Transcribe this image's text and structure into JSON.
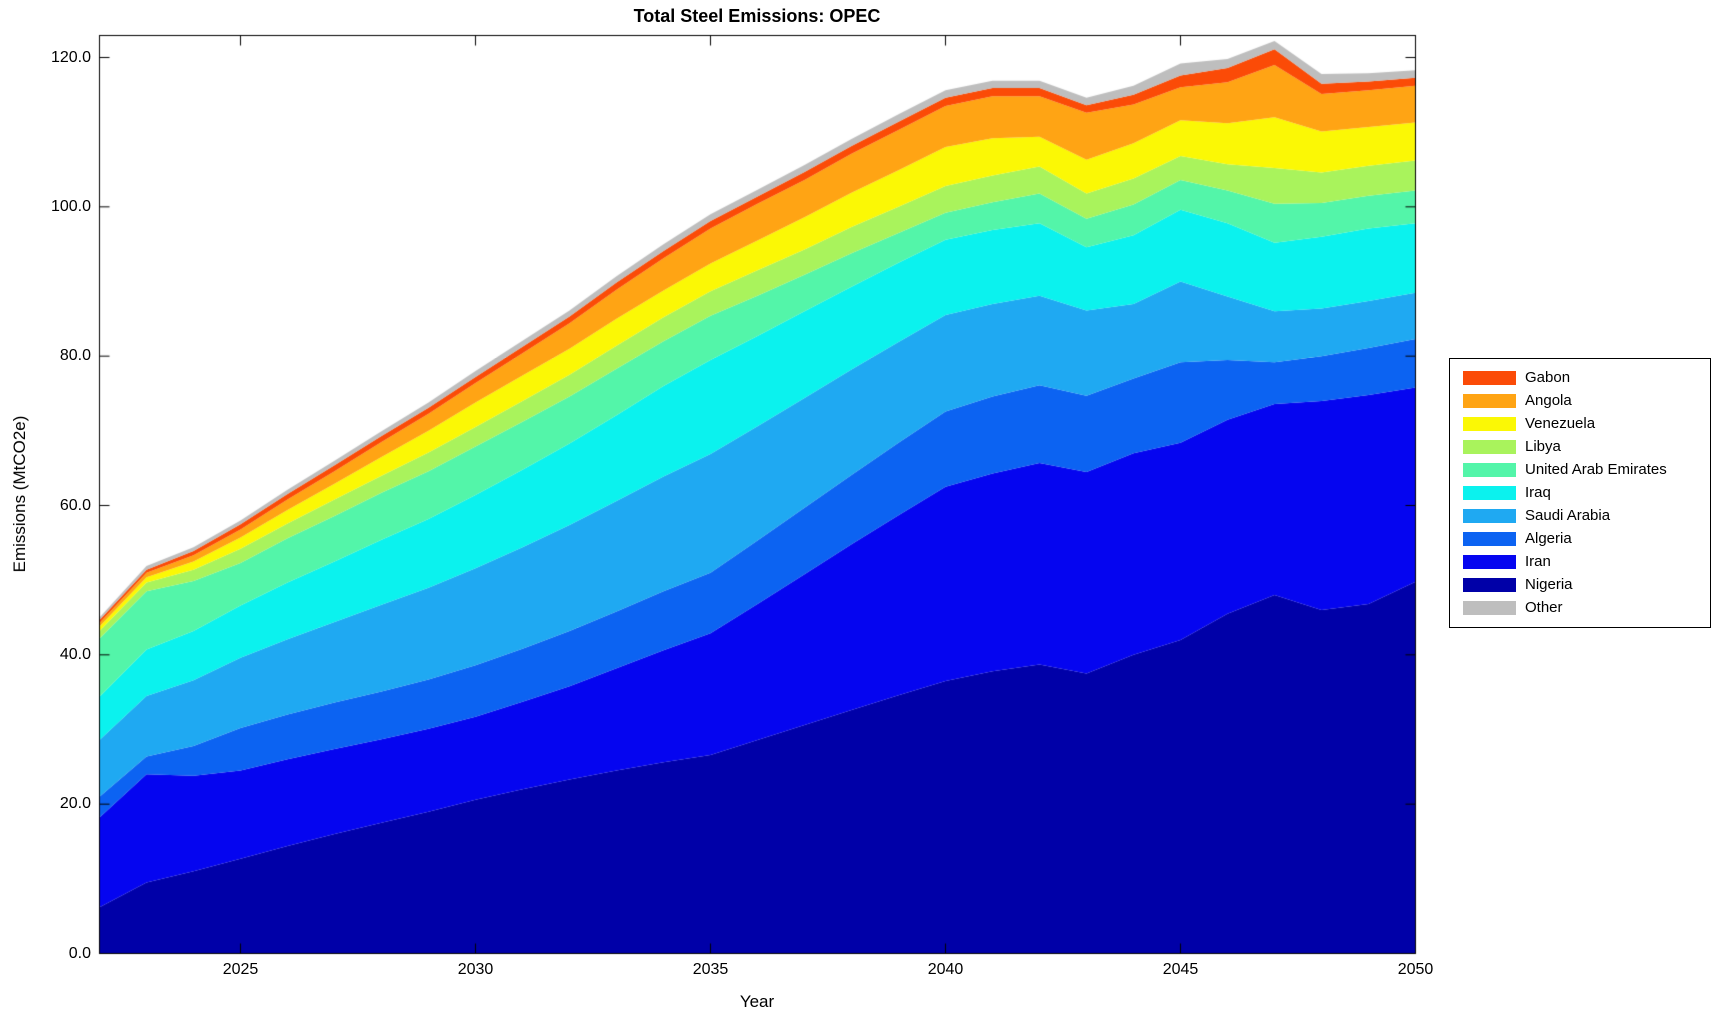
{
  "chart_data": {
    "type": "area",
    "stacked": true,
    "title": "Total Steel Emissions: OPEC",
    "xlabel": "Year",
    "ylabel": "Emissions (MtCO2e)",
    "grid": false,
    "legend_position": "right-outside",
    "xlim": [
      2022,
      2050
    ],
    "ylim": [
      0,
      123
    ],
    "xticks": {
      "values": [
        2025,
        2030,
        2035,
        2040,
        2045,
        2050
      ],
      "labels": [
        "2025",
        "2030",
        "2035",
        "2040",
        "2045",
        "2050"
      ]
    },
    "yticks": {
      "values": [
        0,
        20,
        40,
        60,
        80,
        100,
        120
      ],
      "labels": [
        "0.0",
        "20.0",
        "40.0",
        "60.0",
        "80.0",
        "100.0",
        "120.0"
      ]
    },
    "x": [
      2022,
      2023,
      2024,
      2025,
      2026,
      2027,
      2028,
      2029,
      2030,
      2031,
      2032,
      2033,
      2034,
      2035,
      2036,
      2037,
      2038,
      2039,
      2040,
      2041,
      2042,
      2043,
      2044,
      2045,
      2046,
      2047,
      2048,
      2049,
      2050
    ],
    "stack_note": "series listed bottom-to-top; values in MtCO2e",
    "series": [
      {
        "name": "Nigeria",
        "color": "#0000A8",
        "values": [
          6.2,
          9.5,
          11.0,
          12.7,
          14.4,
          16.0,
          17.5,
          19.0,
          20.6,
          22.0,
          23.3,
          24.5,
          25.6,
          26.6,
          28.6,
          30.6,
          32.6,
          34.6,
          36.5,
          37.8,
          38.7,
          37.5,
          40.0,
          42.0,
          45.5,
          48.0,
          46.0,
          46.8,
          49.8
        ]
      },
      {
        "name": "Iran",
        "color": "#0505F0",
        "values": [
          12.0,
          14.5,
          12.8,
          11.8,
          11.6,
          11.4,
          11.2,
          11.1,
          11.1,
          11.7,
          12.5,
          13.7,
          15.0,
          16.3,
          18.2,
          20.2,
          22.2,
          24.1,
          26.0,
          26.5,
          27.0,
          27.0,
          27.0,
          26.4,
          26.0,
          25.6,
          28.0,
          28.0,
          26.0
        ]
      },
      {
        "name": "Algeria",
        "color": "#0C63F2",
        "values": [
          2.8,
          2.4,
          4.0,
          5.7,
          6.0,
          6.2,
          6.4,
          6.6,
          6.9,
          7.1,
          7.4,
          7.6,
          7.9,
          8.1,
          8.5,
          8.9,
          9.3,
          9.7,
          10.1,
          10.3,
          10.4,
          10.2,
          10.0,
          10.8,
          8.0,
          5.6,
          6.0,
          6.3,
          6.5
        ]
      },
      {
        "name": "Saudi Arabia",
        "color": "#1FA9F2",
        "values": [
          7.6,
          8.1,
          8.8,
          9.4,
          10.1,
          10.8,
          11.6,
          12.3,
          13.0,
          13.6,
          14.2,
          14.8,
          15.4,
          15.9,
          15.3,
          14.7,
          14.1,
          13.5,
          12.9,
          12.4,
          12.0,
          11.4,
          10.0,
          10.8,
          8.5,
          6.8,
          6.4,
          6.3,
          6.2
        ]
      },
      {
        "name": "Iraq",
        "color": "#0BF2EE",
        "values": [
          5.8,
          6.2,
          6.6,
          7.0,
          7.6,
          8.1,
          8.7,
          9.2,
          9.8,
          10.4,
          10.9,
          11.5,
          12.1,
          12.6,
          12.1,
          11.6,
          11.1,
          10.6,
          10.1,
          9.9,
          9.7,
          8.5,
          9.2,
          9.6,
          9.8,
          9.2,
          9.6,
          9.7,
          9.3
        ]
      },
      {
        "name": "United Arab Emirates",
        "color": "#53F5A9",
        "values": [
          7.8,
          7.8,
          6.7,
          5.7,
          5.9,
          6.1,
          6.3,
          6.4,
          6.5,
          6.4,
          6.3,
          6.2,
          6.0,
          5.9,
          5.4,
          4.9,
          4.5,
          4.0,
          3.6,
          3.7,
          4.0,
          3.8,
          4.1,
          4.0,
          4.4,
          5.2,
          4.5,
          4.4,
          4.4
        ]
      },
      {
        "name": "Libya",
        "color": "#A9F35C",
        "values": [
          1.0,
          1.2,
          1.5,
          1.9,
          2.0,
          2.2,
          2.3,
          2.5,
          2.6,
          2.8,
          2.9,
          3.1,
          3.2,
          3.3,
          3.4,
          3.4,
          3.5,
          3.5,
          3.6,
          3.6,
          3.6,
          3.4,
          3.5,
          3.2,
          3.5,
          4.8,
          4.1,
          4.0,
          4.0
        ]
      },
      {
        "name": "Venezuela",
        "color": "#FBF805",
        "values": [
          0.6,
          0.7,
          1.1,
          1.5,
          1.8,
          2.1,
          2.5,
          2.9,
          3.3,
          3.4,
          3.5,
          3.6,
          3.6,
          3.7,
          4.0,
          4.3,
          4.6,
          4.9,
          5.2,
          5.0,
          4.0,
          4.5,
          4.7,
          4.8,
          5.5,
          6.8,
          5.5,
          5.2,
          5.1
        ]
      },
      {
        "name": "Angola",
        "color": "#FFA414",
        "values": [
          0.45,
          0.6,
          0.85,
          1.1,
          1.4,
          1.7,
          2.0,
          2.3,
          2.6,
          3.0,
          3.4,
          3.9,
          4.3,
          4.7,
          4.9,
          5.0,
          5.2,
          5.4,
          5.5,
          5.6,
          5.4,
          6.3,
          5.2,
          4.4,
          5.5,
          7.0,
          5.0,
          4.9,
          4.9
        ]
      },
      {
        "name": "Gabon",
        "color": "#FB4B07",
        "values": [
          0.4,
          0.4,
          0.55,
          0.7,
          0.75,
          0.8,
          0.8,
          0.8,
          0.8,
          0.85,
          0.9,
          0.95,
          1.0,
          1.0,
          1.0,
          1.05,
          1.05,
          1.1,
          1.1,
          1.1,
          1.1,
          1.0,
          1.3,
          1.6,
          1.9,
          2.1,
          1.4,
          1.2,
          1.1
        ]
      },
      {
        "name": "Other",
        "color": "#BEBEBE",
        "values": [
          0.36,
          0.5,
          0.5,
          0.5,
          0.55,
          0.6,
          0.65,
          0.7,
          0.8,
          0.8,
          0.8,
          0.85,
          0.9,
          0.9,
          0.9,
          0.95,
          0.95,
          1.0,
          1.0,
          1.0,
          1.0,
          1.0,
          1.2,
          1.6,
          1.2,
          1.1,
          1.3,
          1.1,
          1.0
        ]
      }
    ],
    "legend": [
      {
        "label": "Gabon",
        "color": "#FB4B07"
      },
      {
        "label": "Angola",
        "color": "#FFA414"
      },
      {
        "label": "Venezuela",
        "color": "#FBF805"
      },
      {
        "label": "Libya",
        "color": "#A9F35C"
      },
      {
        "label": "United Arab Emirates",
        "color": "#53F5A9"
      },
      {
        "label": "Iraq",
        "color": "#0BF2EE"
      },
      {
        "label": "Saudi Arabia",
        "color": "#1FA9F2"
      },
      {
        "label": "Algeria",
        "color": "#0C63F2"
      },
      {
        "label": "Iran",
        "color": "#0505F0"
      },
      {
        "label": "Nigeria",
        "color": "#0000A8"
      },
      {
        "label": "Other",
        "color": "#BEBEBE"
      }
    ]
  },
  "colors": {
    "background": "#FFFFFF",
    "axis": "#000000",
    "text": "#000000"
  }
}
